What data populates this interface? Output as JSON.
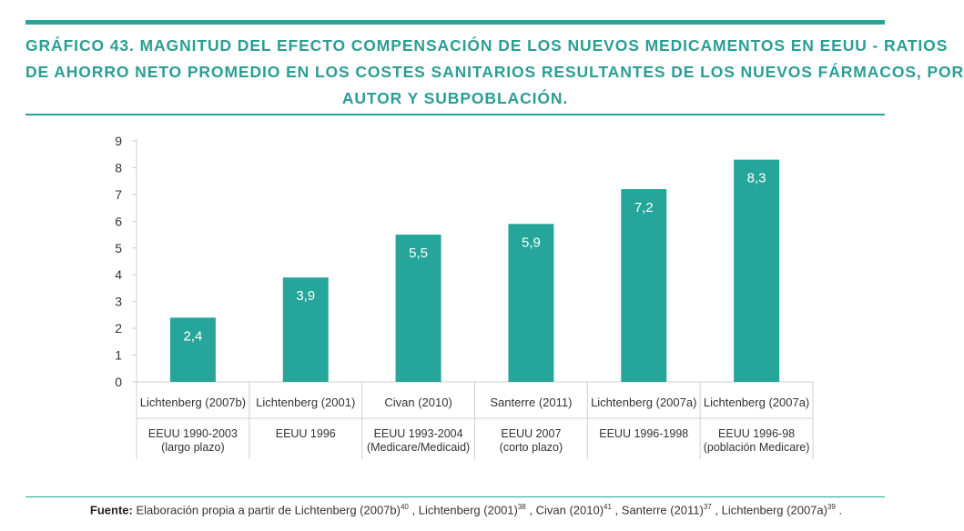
{
  "colors": {
    "accent": "#26a69a",
    "title": "#2b9e93",
    "rule": "#26a69a",
    "grid": "#cfcfcf",
    "text": "#333333",
    "bar_label": "#ffffff"
  },
  "title_lines": [
    "GRÁFICO 43. MAGNITUD DEL EFECTO COMPENSACIÓN DE LOS NUEVOS MEDICAMENTOS EN EEUU - RATIOS",
    "DE AHORRO NETO PROMEDIO EN LOS COSTES SANITARIOS RESULTANTES DE LOS NUEVOS FÁRMACOS, POR",
    "AUTOR Y SUBPOBLACIÓN."
  ],
  "chart_data": {
    "type": "bar",
    "title": "GRÁFICO 43. MAGNITUD DEL EFECTO COMPENSACIÓN DE LOS NUEVOS MEDICAMENTOS EN EEUU - RATIOS DE AHORRO NETO PROMEDIO EN LOS COSTES SANITARIOS RESULTANTES DE LOS NUEVOS FÁRMACOS, POR AUTOR Y SUBPOBLACIÓN.",
    "xlabel": "",
    "ylabel": "",
    "ylim": [
      0,
      9
    ],
    "yticks": [
      "0",
      "1",
      "2",
      "3",
      "4",
      "5",
      "6",
      "7",
      "8",
      "9"
    ],
    "grid": false,
    "legend": "none",
    "categories": [
      {
        "author": "Lichtenberg (2007b)",
        "population": [
          "EEUU 1990-2003",
          "(largo plazo)"
        ]
      },
      {
        "author": "Lichtenberg (2001)",
        "population": [
          "EEUU 1996"
        ]
      },
      {
        "author": "Civan (2010)",
        "population": [
          "EEUU 1993-2004",
          "(Medicare/Medicaid)"
        ]
      },
      {
        "author": "Santerre (2011)",
        "population": [
          "EEUU 2007",
          "(corto plazo)"
        ]
      },
      {
        "author": "Lichtenberg (2007a)",
        "population": [
          "EEUU 1996-1998"
        ]
      },
      {
        "author": "Lichtenberg (2007a)",
        "population": [
          "EEUU 1996-98",
          "(población Medicare)"
        ]
      }
    ],
    "values": [
      2.4,
      3.9,
      5.5,
      5.9,
      7.2,
      8.3
    ],
    "value_labels": [
      "2,4",
      "3,9",
      "5,5",
      "5,9",
      "7,2",
      "8,3"
    ]
  },
  "source": {
    "label": "Fuente:",
    "parts": [
      {
        "text": " Elaboración propia a partir de Lichtenberg (2007b)",
        "ref": "40"
      },
      {
        "text": " , Lichtenberg (2001)",
        "ref": "38"
      },
      {
        "text": " , Civan (2010)",
        "ref": "41"
      },
      {
        "text": " , Santerre (2011)",
        "ref": "37"
      },
      {
        "text": " , Lichtenberg (2007a)",
        "ref": "39"
      }
    ],
    "end": " ."
  }
}
